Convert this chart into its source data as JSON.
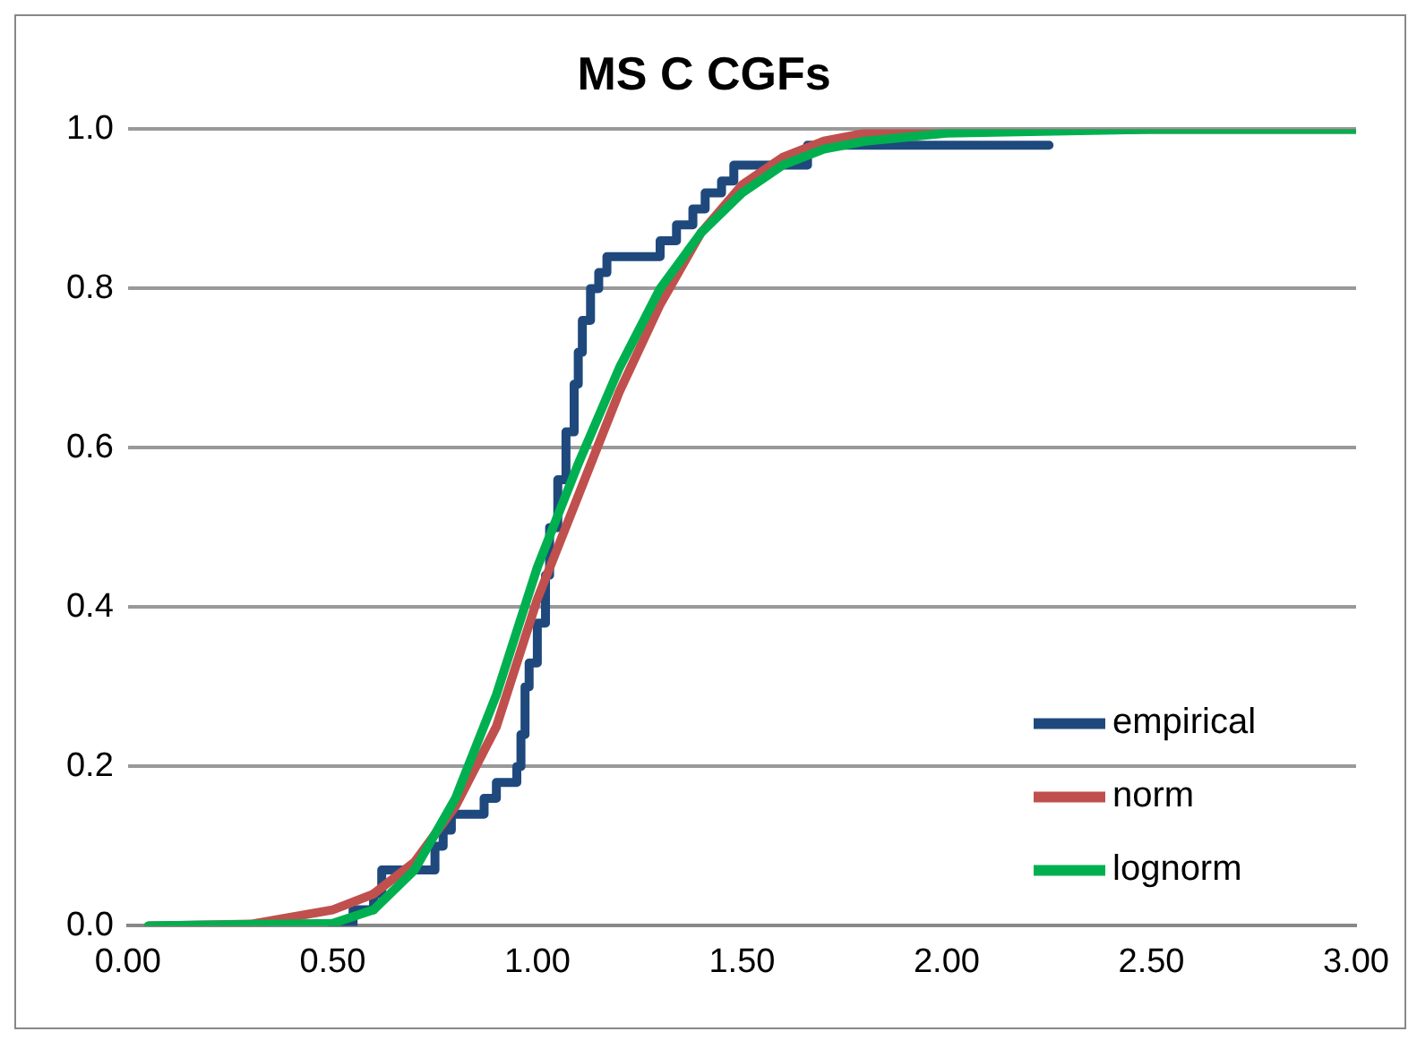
{
  "chart_data": {
    "type": "line",
    "title": "MS C CGFs",
    "series": [
      {
        "name": "empirical",
        "type": "step",
        "color": "#1f497d",
        "x": [
          0.5,
          0.55,
          0.6,
          0.62,
          0.75,
          0.77,
          0.79,
          0.87,
          0.9,
          0.95,
          0.96,
          0.97,
          0.98,
          1.0,
          1.02,
          1.03,
          1.05,
          1.07,
          1.09,
          1.1,
          1.11,
          1.13,
          1.15,
          1.17,
          1.3,
          1.34,
          1.38,
          1.41,
          1.45,
          1.48,
          1.66,
          2.25
        ],
        "values": [
          0,
          0.02,
          0.04,
          0.07,
          0.1,
          0.12,
          0.14,
          0.16,
          0.18,
          0.2,
          0.24,
          0.3,
          0.33,
          0.38,
          0.44,
          0.5,
          0.56,
          0.62,
          0.68,
          0.72,
          0.76,
          0.8,
          0.82,
          0.84,
          0.86,
          0.88,
          0.9,
          0.92,
          0.935,
          0.955,
          0.98,
          0.98
        ]
      },
      {
        "name": "norm",
        "color": "#c0504d",
        "x": [
          0.05,
          0.3,
          0.5,
          0.6,
          0.7,
          0.8,
          0.9,
          1.0,
          1.1,
          1.2,
          1.3,
          1.4,
          1.5,
          1.6,
          1.7,
          1.8,
          1.9,
          2.0,
          2.5,
          3.0
        ],
        "values": [
          0,
          0.002,
          0.02,
          0.04,
          0.08,
          0.15,
          0.25,
          0.41,
          0.54,
          0.67,
          0.78,
          0.87,
          0.93,
          0.965,
          0.985,
          0.995,
          1,
          1,
          1,
          1
        ]
      },
      {
        "name": "lognorm",
        "color": "#00b050",
        "x": [
          0.05,
          0.5,
          0.6,
          0.7,
          0.8,
          0.9,
          1.0,
          1.1,
          1.2,
          1.3,
          1.4,
          1.5,
          1.6,
          1.7,
          1.8,
          2.0,
          2.5,
          3.0
        ],
        "values": [
          0,
          0.003,
          0.02,
          0.07,
          0.16,
          0.29,
          0.45,
          0.58,
          0.7,
          0.8,
          0.87,
          0.92,
          0.955,
          0.975,
          0.985,
          0.995,
          1,
          1
        ]
      }
    ],
    "xlim": [
      0,
      3
    ],
    "xticks": [
      {
        "value": 0,
        "label": "0.00"
      },
      {
        "value": 0.5,
        "label": "0.50"
      },
      {
        "value": 1,
        "label": "1.00"
      },
      {
        "value": 1.5,
        "label": "1.50"
      },
      {
        "value": 2,
        "label": "2.00"
      },
      {
        "value": 2.5,
        "label": "2.50"
      },
      {
        "value": 3,
        "label": "3.00"
      }
    ],
    "ylim": [
      0,
      1
    ],
    "yticks": [
      {
        "value": 0,
        "label": "0.0"
      },
      {
        "value": 0.2,
        "label": "0.2"
      },
      {
        "value": 0.4,
        "label": "0.4"
      },
      {
        "value": 0.6,
        "label": "0.6"
      },
      {
        "value": 0.8,
        "label": "0.8"
      },
      {
        "value": 1,
        "label": "1.0"
      }
    ],
    "grid": "y",
    "legend": "bottom right",
    "marker": "none",
    "line_style": "solid"
  }
}
